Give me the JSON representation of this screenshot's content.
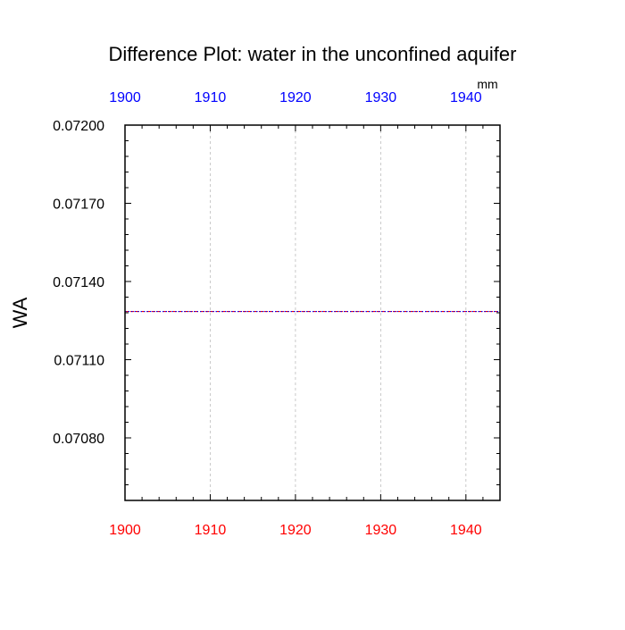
{
  "chart_data": {
    "type": "line",
    "title": "Difference Plot: water in the unconfined aquifer",
    "ylabel": "WA",
    "units": "mm",
    "xlim": [
      1900,
      1944
    ],
    "ylim": [
      0.07056,
      0.072
    ],
    "x_ticks": [
      1900,
      1910,
      1920,
      1930,
      1940
    ],
    "x_tick_labels_top": [
      "1900",
      "1910",
      "1920",
      "1930",
      "1940"
    ],
    "x_tick_labels_bottom": [
      "1900",
      "1910",
      "1920",
      "1930",
      "1940"
    ],
    "y_ticks": [
      0.0708,
      0.0711,
      0.0714,
      0.0717,
      0.072
    ],
    "y_tick_labels": [
      "0.07080",
      "0.07110",
      "0.07140",
      "0.07170",
      "0.07200"
    ],
    "grid": "vertical dashed",
    "colors": {
      "top_axis_labels": "#0000ff",
      "bottom_axis_labels": "#ff0000",
      "series_a": "#ff0000",
      "series_b": "#0000ff"
    },
    "series": [
      {
        "x": [
          1900,
          1944
        ],
        "values": [
          0.071285,
          0.071285
        ],
        "color": "#ff0000",
        "style": "dashed"
      },
      {
        "x": [
          1900,
          1944
        ],
        "values": [
          0.071285,
          0.071285
        ],
        "color": "#0000ff",
        "style": "dotted"
      }
    ]
  }
}
